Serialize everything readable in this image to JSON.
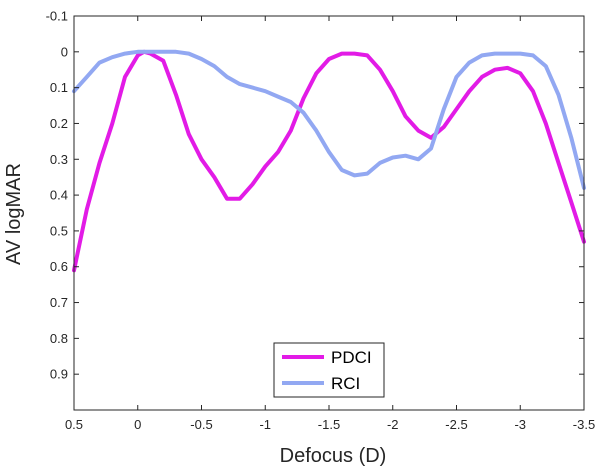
{
  "chart_data": {
    "type": "line",
    "title": "",
    "xlabel": "Defocus (D)",
    "ylabel": "AV logMAR",
    "xlim": [
      0.5,
      -3.5
    ],
    "ylim": [
      -0.1,
      1.0
    ],
    "x_reversed": true,
    "y_reversed": true,
    "xticks": [
      0.5,
      0,
      -0.5,
      -1,
      -1.5,
      -2,
      -2.5,
      -3,
      -3.5
    ],
    "xtick_labels": [
      "0.5",
      "0",
      "-0.5",
      "-1",
      "-1.5",
      "-2",
      "-2.5",
      "-3",
      "-3.5"
    ],
    "yticks": [
      -0.1,
      0,
      0.1,
      0.2,
      0.3,
      0.4,
      0.5,
      0.6,
      0.7,
      0.8,
      0.9
    ],
    "ytick_labels": [
      "-0.1",
      "0",
      "0.1",
      "0.2",
      "0.3",
      "0.4",
      "0.5",
      "0.6",
      "0.7",
      "0.8",
      "0.9"
    ],
    "grid": false,
    "legend_position": "bottom-center",
    "series": [
      {
        "name": "PDCI",
        "color": "#e21be6",
        "points": [
          [
            0.5,
            0.61
          ],
          [
            0.4,
            0.44
          ],
          [
            0.3,
            0.31
          ],
          [
            0.2,
            0.2
          ],
          [
            0.1,
            0.07
          ],
          [
            0.0,
            0.01
          ],
          [
            -0.05,
            0.0
          ],
          [
            -0.1,
            0.005
          ],
          [
            -0.2,
            0.025
          ],
          [
            -0.3,
            0.12
          ],
          [
            -0.4,
            0.23
          ],
          [
            -0.5,
            0.3
          ],
          [
            -0.6,
            0.35
          ],
          [
            -0.7,
            0.41
          ],
          [
            -0.8,
            0.41
          ],
          [
            -0.9,
            0.37
          ],
          [
            -1.0,
            0.32
          ],
          [
            -1.1,
            0.28
          ],
          [
            -1.2,
            0.22
          ],
          [
            -1.3,
            0.13
          ],
          [
            -1.4,
            0.06
          ],
          [
            -1.5,
            0.02
          ],
          [
            -1.6,
            0.005
          ],
          [
            -1.7,
            0.005
          ],
          [
            -1.8,
            0.01
          ],
          [
            -1.9,
            0.05
          ],
          [
            -2.0,
            0.11
          ],
          [
            -2.1,
            0.18
          ],
          [
            -2.2,
            0.22
          ],
          [
            -2.3,
            0.24
          ],
          [
            -2.4,
            0.21
          ],
          [
            -2.5,
            0.16
          ],
          [
            -2.6,
            0.11
          ],
          [
            -2.7,
            0.07
          ],
          [
            -2.8,
            0.05
          ],
          [
            -2.9,
            0.045
          ],
          [
            -3.0,
            0.06
          ],
          [
            -3.1,
            0.11
          ],
          [
            -3.2,
            0.2
          ],
          [
            -3.3,
            0.31
          ],
          [
            -3.4,
            0.42
          ],
          [
            -3.5,
            0.53
          ]
        ]
      },
      {
        "name": "RCI",
        "color": "#92a8f2",
        "points": [
          [
            0.5,
            0.11
          ],
          [
            0.4,
            0.07
          ],
          [
            0.3,
            0.03
          ],
          [
            0.2,
            0.015
          ],
          [
            0.1,
            0.005
          ],
          [
            0.0,
            0.0
          ],
          [
            -0.1,
            0.0
          ],
          [
            -0.2,
            0.0
          ],
          [
            -0.3,
            0.0
          ],
          [
            -0.4,
            0.005
          ],
          [
            -0.5,
            0.02
          ],
          [
            -0.6,
            0.04
          ],
          [
            -0.7,
            0.07
          ],
          [
            -0.8,
            0.09
          ],
          [
            -0.9,
            0.1
          ],
          [
            -1.0,
            0.11
          ],
          [
            -1.1,
            0.125
          ],
          [
            -1.2,
            0.14
          ],
          [
            -1.3,
            0.17
          ],
          [
            -1.4,
            0.22
          ],
          [
            -1.5,
            0.28
          ],
          [
            -1.6,
            0.33
          ],
          [
            -1.7,
            0.345
          ],
          [
            -1.8,
            0.34
          ],
          [
            -1.9,
            0.31
          ],
          [
            -2.0,
            0.295
          ],
          [
            -2.1,
            0.29
          ],
          [
            -2.2,
            0.3
          ],
          [
            -2.3,
            0.27
          ],
          [
            -2.4,
            0.16
          ],
          [
            -2.5,
            0.07
          ],
          [
            -2.6,
            0.03
          ],
          [
            -2.7,
            0.01
          ],
          [
            -2.8,
            0.005
          ],
          [
            -2.9,
            0.005
          ],
          [
            -3.0,
            0.005
          ],
          [
            -3.1,
            0.01
          ],
          [
            -3.2,
            0.04
          ],
          [
            -3.3,
            0.12
          ],
          [
            -3.4,
            0.24
          ],
          [
            -3.5,
            0.38
          ]
        ]
      }
    ]
  }
}
